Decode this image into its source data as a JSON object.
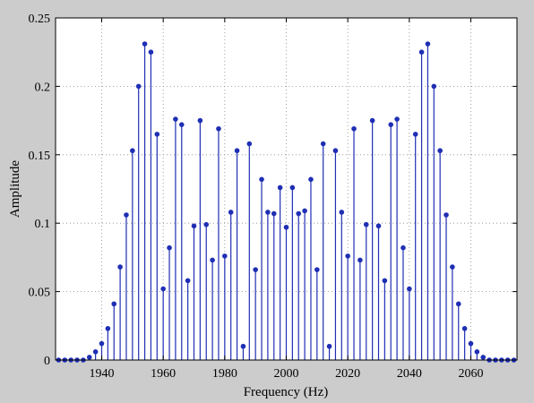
{
  "chart_data": {
    "type": "stem",
    "title": "",
    "xlabel": "Frequency (Hz)",
    "ylabel": "Amplitude",
    "xlim": [
      1925,
      2075
    ],
    "ylim": [
      0,
      0.25
    ],
    "xticks": [
      1940,
      1960,
      1980,
      2000,
      2020,
      2040,
      2060
    ],
    "yticks": [
      0,
      0.05,
      0.1,
      0.15,
      0.2,
      0.25
    ],
    "xtick_labels": [
      "1940",
      "1960",
      "1980",
      "2000",
      "2020",
      "2040",
      "2060"
    ],
    "ytick_labels": [
      "0",
      "0.05",
      "0.1",
      "0.15",
      "0.2",
      "0.25"
    ],
    "grid": true,
    "legend": "none",
    "series_color": "#1f2fb4",
    "grid_color": "#8a8a8a",
    "x": [
      1926,
      1928,
      1930,
      1932,
      1934,
      1936,
      1938,
      1940,
      1942,
      1944,
      1946,
      1948,
      1950,
      1952,
      1954,
      1956,
      1958,
      1960,
      1962,
      1964,
      1966,
      1968,
      1970,
      1972,
      1974,
      1976,
      1978,
      1980,
      1982,
      1984,
      1986,
      1988,
      1990,
      1992,
      1994,
      1996,
      1998,
      2000,
      2002,
      2004,
      2006,
      2008,
      2010,
      2012,
      2014,
      2016,
      2018,
      2020,
      2022,
      2024,
      2026,
      2028,
      2030,
      2032,
      2034,
      2036,
      2038,
      2040,
      2042,
      2044,
      2046,
      2048,
      2050,
      2052,
      2054,
      2056,
      2058,
      2060,
      2062,
      2064,
      2066,
      2068,
      2070,
      2072,
      2074
    ],
    "y": [
      0,
      0,
      0,
      0,
      0,
      0.002,
      0.006,
      0.012,
      0.023,
      0.041,
      0.068,
      0.106,
      0.153,
      0.2,
      0.231,
      0.225,
      0.165,
      0.052,
      0.082,
      0.176,
      0.172,
      0.058,
      0.098,
      0.175,
      0.099,
      0.073,
      0.169,
      0.076,
      0.108,
      0.153,
      0.01,
      0.158,
      0.066,
      0.132,
      0.108,
      0.107,
      0.126,
      0.097,
      0.126,
      0.107,
      0.109,
      0.132,
      0.066,
      0.158,
      0.01,
      0.153,
      0.108,
      0.076,
      0.169,
      0.073,
      0.099,
      0.175,
      0.098,
      0.058,
      0.172,
      0.176,
      0.082,
      0.052,
      0.165,
      0.225,
      0.231,
      0.2,
      0.153,
      0.106,
      0.068,
      0.041,
      0.023,
      0.012,
      0.006,
      0.002,
      0,
      0,
      0,
      0,
      0
    ]
  }
}
